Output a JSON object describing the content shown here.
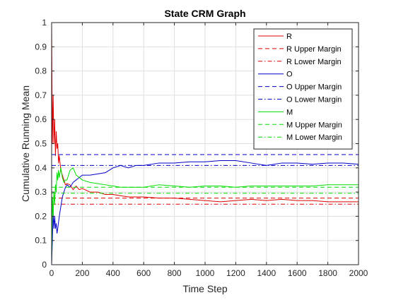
{
  "chart_data": {
    "type": "line",
    "title": "State CRM Graph",
    "xlabel": "Time Step",
    "ylabel": "Cumulative Running Mean",
    "xlim": [
      0,
      2000
    ],
    "ylim": [
      0,
      1
    ],
    "xticks": [
      0,
      200,
      400,
      600,
      800,
      1000,
      1200,
      1400,
      1600,
      1800,
      2000
    ],
    "xtick_labels": [
      "0",
      "200",
      "400",
      "600",
      "800",
      "1000",
      "1200",
      "1400",
      "1600",
      "1800",
      "2000"
    ],
    "yticks": [
      0,
      0.1,
      0.2,
      0.3,
      0.4,
      0.5,
      0.6,
      0.7,
      0.8,
      0.9,
      1
    ],
    "ytick_labels": [
      "0",
      "0.1",
      "0.2",
      "0.3",
      "0.4",
      "0.5",
      "0.6",
      "0.7",
      "0.8",
      "0.9",
      "1"
    ],
    "grid": true,
    "legend_position": "top-right",
    "series": [
      {
        "name": "R",
        "color": "#e00000",
        "dash": "solid",
        "points": [
          [
            0,
            1.0
          ],
          [
            5,
            0.5
          ],
          [
            10,
            0.7
          ],
          [
            15,
            0.5
          ],
          [
            20,
            0.6
          ],
          [
            25,
            0.45
          ],
          [
            30,
            0.55
          ],
          [
            35,
            0.48
          ],
          [
            40,
            0.5
          ],
          [
            45,
            0.42
          ],
          [
            50,
            0.45
          ],
          [
            60,
            0.39
          ],
          [
            70,
            0.37
          ],
          [
            80,
            0.35
          ],
          [
            90,
            0.33
          ],
          [
            100,
            0.335
          ],
          [
            120,
            0.33
          ],
          [
            140,
            0.31
          ],
          [
            160,
            0.325
          ],
          [
            180,
            0.31
          ],
          [
            200,
            0.315
          ],
          [
            250,
            0.3
          ],
          [
            300,
            0.3
          ],
          [
            350,
            0.29
          ],
          [
            400,
            0.29
          ],
          [
            450,
            0.285
          ],
          [
            500,
            0.28
          ],
          [
            600,
            0.28
          ],
          [
            700,
            0.275
          ],
          [
            800,
            0.275
          ],
          [
            900,
            0.27
          ],
          [
            1000,
            0.265
          ],
          [
            1100,
            0.26
          ],
          [
            1200,
            0.265
          ],
          [
            1300,
            0.27
          ],
          [
            1400,
            0.265
          ],
          [
            1500,
            0.27
          ],
          [
            1600,
            0.265
          ],
          [
            1700,
            0.265
          ],
          [
            1800,
            0.26
          ],
          [
            1900,
            0.26
          ],
          [
            2000,
            0.26
          ]
        ]
      },
      {
        "name": "R Upper Margin",
        "color": "#e00000",
        "dash": "dash",
        "points": [
          [
            0,
            0.275
          ],
          [
            2000,
            0.275
          ]
        ]
      },
      {
        "name": "R Lower Margin",
        "color": "#e00000",
        "dash": "dashdot",
        "points": [
          [
            0,
            0.25
          ],
          [
            2000,
            0.25
          ]
        ]
      },
      {
        "name": "O",
        "color": "#0000c8",
        "dash": "solid",
        "points": [
          [
            0,
            0.0
          ],
          [
            5,
            0.1
          ],
          [
            10,
            0.22
          ],
          [
            15,
            0.15
          ],
          [
            20,
            0.2
          ],
          [
            25,
            0.15
          ],
          [
            30,
            0.17
          ],
          [
            35,
            0.13
          ],
          [
            40,
            0.15
          ],
          [
            50,
            0.2
          ],
          [
            60,
            0.24
          ],
          [
            70,
            0.28
          ],
          [
            80,
            0.3
          ],
          [
            90,
            0.32
          ],
          [
            100,
            0.33
          ],
          [
            120,
            0.32
          ],
          [
            140,
            0.34
          ],
          [
            160,
            0.35
          ],
          [
            180,
            0.36
          ],
          [
            200,
            0.37
          ],
          [
            250,
            0.37
          ],
          [
            300,
            0.375
          ],
          [
            350,
            0.38
          ],
          [
            400,
            0.4
          ],
          [
            450,
            0.41
          ],
          [
            500,
            0.4
          ],
          [
            550,
            0.41
          ],
          [
            600,
            0.41
          ],
          [
            700,
            0.42
          ],
          [
            800,
            0.42
          ],
          [
            900,
            0.425
          ],
          [
            1000,
            0.425
          ],
          [
            1100,
            0.43
          ],
          [
            1200,
            0.43
          ],
          [
            1300,
            0.42
          ],
          [
            1400,
            0.41
          ],
          [
            1500,
            0.42
          ],
          [
            1600,
            0.42
          ],
          [
            1700,
            0.415
          ],
          [
            1800,
            0.42
          ],
          [
            1900,
            0.42
          ],
          [
            2000,
            0.415
          ]
        ]
      },
      {
        "name": "O Upper Margin",
        "color": "#0000c8",
        "dash": "dash",
        "points": [
          [
            0,
            0.455
          ],
          [
            2000,
            0.455
          ]
        ]
      },
      {
        "name": "O Lower Margin",
        "color": "#0000c8",
        "dash": "dashdot",
        "points": [
          [
            0,
            0.41
          ],
          [
            2000,
            0.41
          ]
        ]
      },
      {
        "name": "M",
        "color": "#00dd00",
        "dash": "solid",
        "points": [
          [
            0,
            0.0
          ],
          [
            5,
            0.28
          ],
          [
            10,
            0.2
          ],
          [
            15,
            0.3
          ],
          [
            20,
            0.25
          ],
          [
            25,
            0.33
          ],
          [
            30,
            0.3
          ],
          [
            35,
            0.38
          ],
          [
            40,
            0.35
          ],
          [
            45,
            0.39
          ],
          [
            50,
            0.36
          ],
          [
            60,
            0.4
          ],
          [
            70,
            0.36
          ],
          [
            80,
            0.34
          ],
          [
            90,
            0.35
          ],
          [
            100,
            0.35
          ],
          [
            120,
            0.39
          ],
          [
            140,
            0.4
          ],
          [
            160,
            0.37
          ],
          [
            180,
            0.36
          ],
          [
            200,
            0.35
          ],
          [
            250,
            0.34
          ],
          [
            300,
            0.335
          ],
          [
            350,
            0.33
          ],
          [
            400,
            0.325
          ],
          [
            450,
            0.32
          ],
          [
            500,
            0.32
          ],
          [
            600,
            0.32
          ],
          [
            700,
            0.33
          ],
          [
            800,
            0.325
          ],
          [
            900,
            0.32
          ],
          [
            1000,
            0.325
          ],
          [
            1100,
            0.325
          ],
          [
            1200,
            0.32
          ],
          [
            1300,
            0.325
          ],
          [
            1400,
            0.325
          ],
          [
            1500,
            0.325
          ],
          [
            1600,
            0.325
          ],
          [
            1700,
            0.325
          ],
          [
            1800,
            0.33
          ],
          [
            1900,
            0.33
          ],
          [
            2000,
            0.33
          ]
        ]
      },
      {
        "name": "M Upper Margin",
        "color": "#00dd00",
        "dash": "dash",
        "points": [
          [
            0,
            0.32
          ],
          [
            2000,
            0.32
          ]
        ]
      },
      {
        "name": "M Lower Margin",
        "color": "#00dd00",
        "dash": "dashdot",
        "points": [
          [
            0,
            0.295
          ],
          [
            2000,
            0.295
          ]
        ]
      }
    ]
  }
}
